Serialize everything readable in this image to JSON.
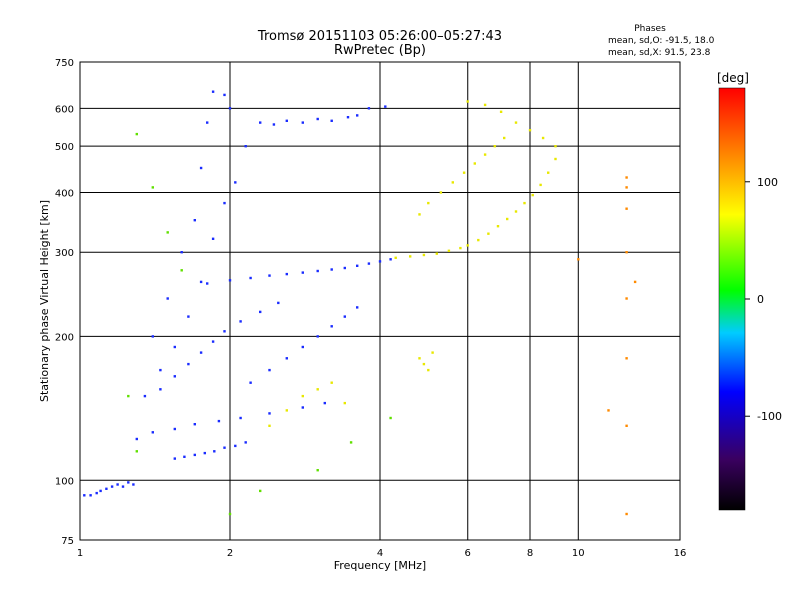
{
  "chart_data": {
    "type": "scatter",
    "title": "Tromsø 20151103 05:26:00–05:27:43",
    "subtitle": "RwPretec (Bp)",
    "xlabel": "Frequency [MHz]",
    "ylabel": "Stationary phase Virtual Height [km]",
    "x_scale": "log",
    "y_scale": "log",
    "xlim": [
      1,
      16
    ],
    "ylim": [
      75,
      750
    ],
    "x_ticks": [
      1,
      2,
      4,
      6,
      8,
      10,
      16
    ],
    "x_tick_labels": [
      "1",
      "2",
      "4",
      "6",
      "8",
      "10",
      "16"
    ],
    "y_ticks": [
      75,
      100,
      200,
      300,
      400,
      500,
      600,
      750
    ],
    "y_tick_labels": [
      "75",
      "100",
      "200",
      "300",
      "400",
      "500",
      "600",
      "750"
    ],
    "grid": true,
    "colorbar": {
      "label": "[deg]",
      "range": [
        -180,
        180
      ],
      "ticks": [
        100,
        0,
        -100
      ],
      "tick_labels": [
        "100",
        "0",
        "-100"
      ],
      "colors": [
        "#000000",
        "#3a0060",
        "#0000ff",
        "#00ccff",
        "#00ff00",
        "#ffff00",
        "#ff8000",
        "#ff0000"
      ]
    },
    "legend_title": "Phases",
    "legend_lines": [
      "mean, sd,O: -91.5, 18.0",
      "mean, sd,X:  91.5, 23.8"
    ],
    "series": [
      {
        "points": [
          [
            1.02,
            93
          ],
          [
            1.05,
            93
          ],
          [
            1.08,
            94
          ],
          [
            1.1,
            95
          ],
          [
            1.13,
            96
          ],
          [
            1.16,
            97
          ],
          [
            1.19,
            98
          ],
          [
            1.22,
            97
          ],
          [
            1.25,
            99
          ],
          [
            1.28,
            98
          ],
          [
            1.55,
            111
          ],
          [
            1.62,
            112
          ],
          [
            1.7,
            113
          ],
          [
            1.78,
            114
          ],
          [
            1.86,
            115
          ],
          [
            1.95,
            117
          ],
          [
            2.05,
            118
          ],
          [
            2.15,
            120
          ],
          [
            1.3,
            122
          ],
          [
            1.4,
            126
          ],
          [
            1.55,
            128
          ],
          [
            1.7,
            131
          ],
          [
            1.9,
            133
          ],
          [
            2.1,
            135
          ],
          [
            2.4,
            138
          ],
          [
            2.8,
            142
          ],
          [
            3.1,
            145
          ],
          [
            1.8,
            258
          ],
          [
            2.0,
            262
          ],
          [
            2.2,
            265
          ],
          [
            2.4,
            268
          ],
          [
            2.6,
            270
          ],
          [
            2.8,
            272
          ],
          [
            3.0,
            274
          ],
          [
            3.2,
            276
          ],
          [
            3.4,
            278
          ],
          [
            3.6,
            281
          ],
          [
            3.8,
            284
          ],
          [
            4.0,
            287
          ],
          [
            4.2,
            290
          ],
          [
            2.3,
            560
          ],
          [
            2.45,
            555
          ],
          [
            2.6,
            565
          ],
          [
            2.8,
            560
          ],
          [
            3.0,
            570
          ],
          [
            3.2,
            565
          ],
          [
            3.45,
            575
          ],
          [
            3.6,
            580
          ],
          [
            3.8,
            600
          ],
          [
            4.1,
            605
          ],
          [
            1.4,
            200
          ],
          [
            1.5,
            240
          ],
          [
            1.6,
            300
          ],
          [
            1.7,
            350
          ],
          [
            1.75,
            450
          ],
          [
            1.8,
            560
          ],
          [
            1.85,
            650
          ],
          [
            1.95,
            640
          ],
          [
            2.0,
            600
          ],
          [
            1.45,
            170
          ],
          [
            1.55,
            190
          ],
          [
            1.65,
            220
          ],
          [
            1.75,
            260
          ],
          [
            1.85,
            320
          ],
          [
            1.95,
            380
          ],
          [
            2.05,
            420
          ],
          [
            2.15,
            500
          ],
          [
            1.35,
            150
          ],
          [
            1.45,
            155
          ],
          [
            1.55,
            165
          ],
          [
            1.65,
            175
          ],
          [
            1.75,
            185
          ],
          [
            1.85,
            195
          ],
          [
            1.95,
            205
          ],
          [
            2.1,
            215
          ],
          [
            2.3,
            225
          ],
          [
            2.5,
            235
          ],
          [
            2.2,
            160
          ],
          [
            2.4,
            170
          ],
          [
            2.6,
            180
          ],
          [
            2.8,
            190
          ],
          [
            3.0,
            200
          ],
          [
            3.2,
            210
          ],
          [
            3.4,
            220
          ],
          [
            3.6,
            230
          ]
        ],
        "phase": -100
      },
      {
        "points": [
          [
            4.3,
            292
          ],
          [
            4.6,
            294
          ],
          [
            4.9,
            296
          ],
          [
            5.2,
            298
          ],
          [
            5.5,
            302
          ],
          [
            5.8,
            306
          ],
          [
            6.0,
            310
          ],
          [
            6.3,
            318
          ],
          [
            6.6,
            328
          ],
          [
            6.9,
            340
          ],
          [
            7.2,
            352
          ],
          [
            7.5,
            365
          ],
          [
            7.8,
            380
          ],
          [
            8.1,
            395
          ],
          [
            8.4,
            415
          ],
          [
            8.7,
            440
          ],
          [
            9.0,
            470
          ],
          [
            6.0,
            620
          ],
          [
            6.5,
            610
          ],
          [
            7.0,
            590
          ],
          [
            7.5,
            560
          ],
          [
            8.0,
            540
          ],
          [
            8.5,
            520
          ],
          [
            9.0,
            500
          ],
          [
            4.8,
            360
          ],
          [
            5.0,
            380
          ],
          [
            5.3,
            400
          ],
          [
            5.6,
            420
          ],
          [
            5.9,
            440
          ],
          [
            6.2,
            460
          ],
          [
            6.5,
            480
          ],
          [
            6.8,
            500
          ],
          [
            7.1,
            520
          ],
          [
            4.9,
            175
          ],
          [
            5.0,
            170
          ],
          [
            4.8,
            180
          ],
          [
            5.1,
            185
          ],
          [
            2.4,
            130
          ],
          [
            2.6,
            140
          ],
          [
            2.8,
            150
          ],
          [
            3.0,
            155
          ],
          [
            3.2,
            160
          ],
          [
            3.4,
            145
          ]
        ],
        "phase": 100
      },
      {
        "points": [
          [
            12.5,
            430
          ],
          [
            12.5,
            410
          ],
          [
            12.5,
            370
          ],
          [
            12.5,
            300
          ],
          [
            12.5,
            240
          ],
          [
            12.5,
            180
          ],
          [
            12.5,
            130
          ],
          [
            12.5,
            85
          ],
          [
            13.0,
            260
          ],
          [
            10.0,
            290
          ],
          [
            11.5,
            140
          ]
        ],
        "phase": 130
      },
      {
        "points": [
          [
            1.3,
            530
          ],
          [
            1.4,
            410
          ],
          [
            1.5,
            330
          ],
          [
            1.6,
            275
          ],
          [
            1.25,
            150
          ],
          [
            1.3,
            115
          ],
          [
            2.0,
            85
          ],
          [
            2.3,
            95
          ],
          [
            3.0,
            105
          ],
          [
            3.5,
            120
          ],
          [
            4.2,
            135
          ]
        ],
        "phase": 20
      }
    ]
  }
}
